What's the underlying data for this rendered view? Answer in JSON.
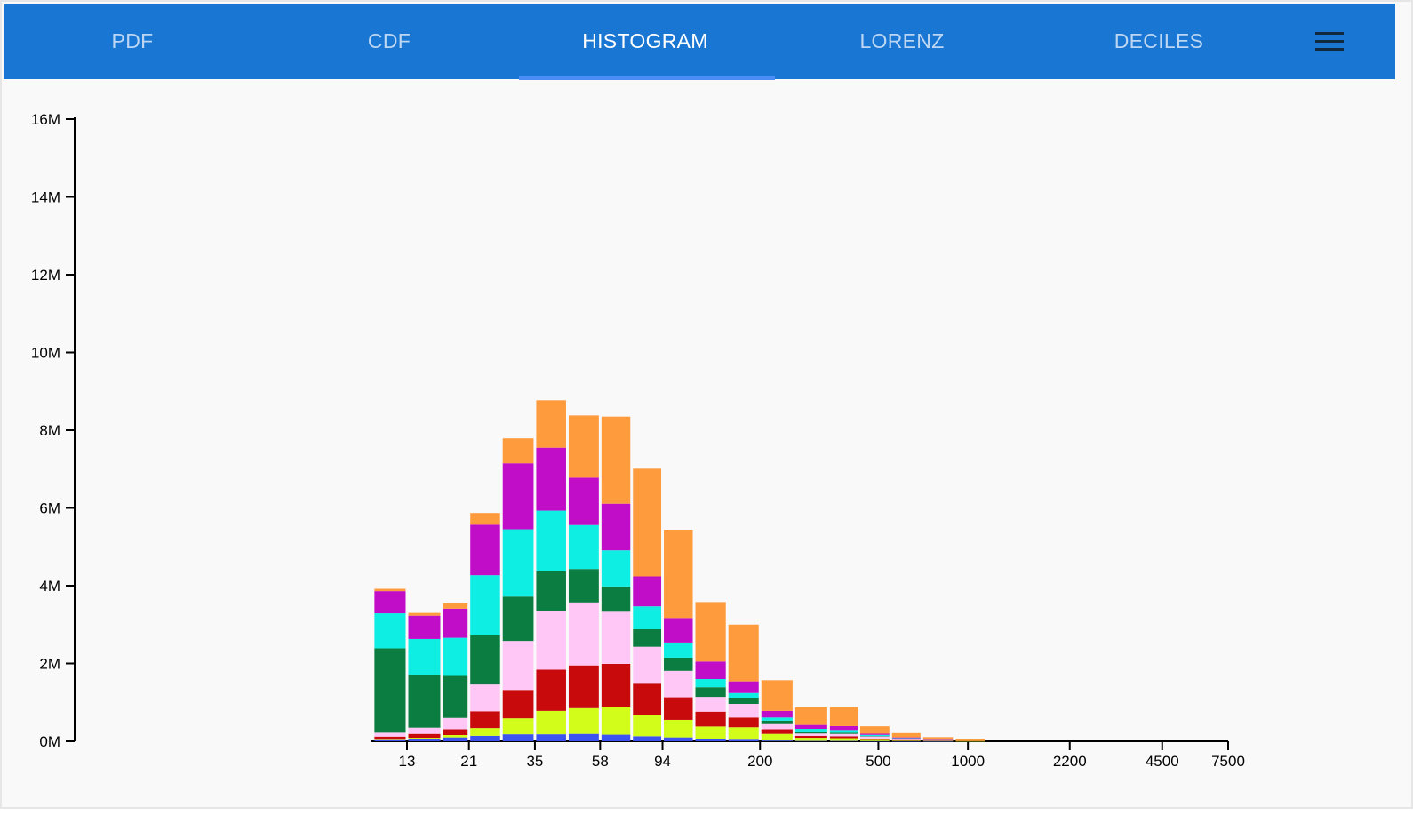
{
  "tabs": [
    {
      "label": "PDF",
      "active": false
    },
    {
      "label": "CDF",
      "active": false
    },
    {
      "label": "HISTOGRAM",
      "active": true
    },
    {
      "label": "LORENZ",
      "active": false
    },
    {
      "label": "DECILES",
      "active": false
    }
  ],
  "menu_icon": "hamburger-menu-icon",
  "colors": {
    "appbar": "#1976d2",
    "indicator": "#4b8cf5",
    "series": [
      "#3d53f0",
      "#d2fc1a",
      "#c90a0c",
      "#ffc7f6",
      "#0c7d41",
      "#0eeee3",
      "#c10dc7",
      "#fe9b3d"
    ]
  },
  "chart_data": {
    "type": "bar",
    "stacked": true,
    "x_scale": "log",
    "title": "",
    "xlabel": "",
    "ylabel": "",
    "ylim": [
      0,
      16000000
    ],
    "y_ticks": [
      "0M",
      "2M",
      "4M",
      "6M",
      "8M",
      "10M",
      "12M",
      "14M",
      "16M"
    ],
    "x_ticks": [
      "13",
      "21",
      "35",
      "58",
      "94",
      "200",
      "500",
      "1000",
      "2200",
      "4500",
      "7500"
    ],
    "bins": [
      [
        10,
        13
      ],
      [
        13,
        17
      ],
      [
        17,
        21
      ],
      [
        21,
        27
      ],
      [
        27,
        35
      ],
      [
        35,
        45
      ],
      [
        45,
        58
      ],
      [
        58,
        74
      ],
      [
        74,
        94
      ],
      [
        94,
        120
      ],
      [
        120,
        155
      ],
      [
        155,
        200
      ],
      [
        200,
        260
      ],
      [
        260,
        340
      ],
      [
        340,
        430
      ],
      [
        430,
        550
      ],
      [
        550,
        700
      ],
      [
        700,
        900
      ],
      [
        900,
        1150
      ]
    ],
    "series": [
      {
        "values": [
          0.03,
          0.06,
          0.1,
          0.14,
          0.18,
          0.18,
          0.19,
          0.17,
          0.13,
          0.1,
          0.06,
          0.04,
          0.02,
          0.01,
          0.01,
          0.005,
          0.003,
          0.002,
          0
        ]
      },
      {
        "values": [
          0.01,
          0.03,
          0.06,
          0.2,
          0.41,
          0.6,
          0.66,
          0.72,
          0.55,
          0.45,
          0.32,
          0.32,
          0.17,
          0.08,
          0.07,
          0.03,
          0.015,
          0.007,
          0.004
        ]
      },
      {
        "values": [
          0.08,
          0.1,
          0.15,
          0.43,
          0.73,
          1.06,
          1.1,
          1.1,
          0.8,
          0.58,
          0.38,
          0.25,
          0.12,
          0.05,
          0.05,
          0.03,
          0.012,
          0.007,
          0
        ]
      },
      {
        "values": [
          0.1,
          0.16,
          0.29,
          0.69,
          1.26,
          1.5,
          1.62,
          1.34,
          0.95,
          0.68,
          0.38,
          0.35,
          0.13,
          0.06,
          0.06,
          0.06,
          0.02,
          0.01,
          0
        ]
      },
      {
        "values": [
          2.17,
          1.35,
          1.08,
          1.26,
          1.14,
          1.03,
          0.86,
          0.65,
          0.45,
          0.34,
          0.25,
          0.16,
          0.09,
          0.03,
          0.03,
          0.01,
          0.01,
          0,
          0
        ]
      },
      {
        "values": [
          0.9,
          0.93,
          0.98,
          1.55,
          1.73,
          1.56,
          1.13,
          0.93,
          0.59,
          0.39,
          0.21,
          0.12,
          0.08,
          0.09,
          0.07,
          0.03,
          0.02,
          0.006,
          0
        ]
      },
      {
        "values": [
          0.57,
          0.6,
          0.75,
          1.3,
          1.7,
          1.62,
          1.22,
          1.2,
          0.77,
          0.63,
          0.45,
          0.3,
          0.17,
          0.1,
          0.1,
          0.03,
          0.02,
          0.005,
          0
        ]
      },
      {
        "values": [
          0.06,
          0.07,
          0.14,
          0.3,
          0.64,
          1.22,
          1.6,
          2.24,
          2.77,
          2.27,
          1.53,
          1.46,
          0.79,
          0.45,
          0.49,
          0.19,
          0.11,
          0.07,
          0.05
        ]
      }
    ],
    "series_units": "millions",
    "legend": "none",
    "grid": false
  }
}
